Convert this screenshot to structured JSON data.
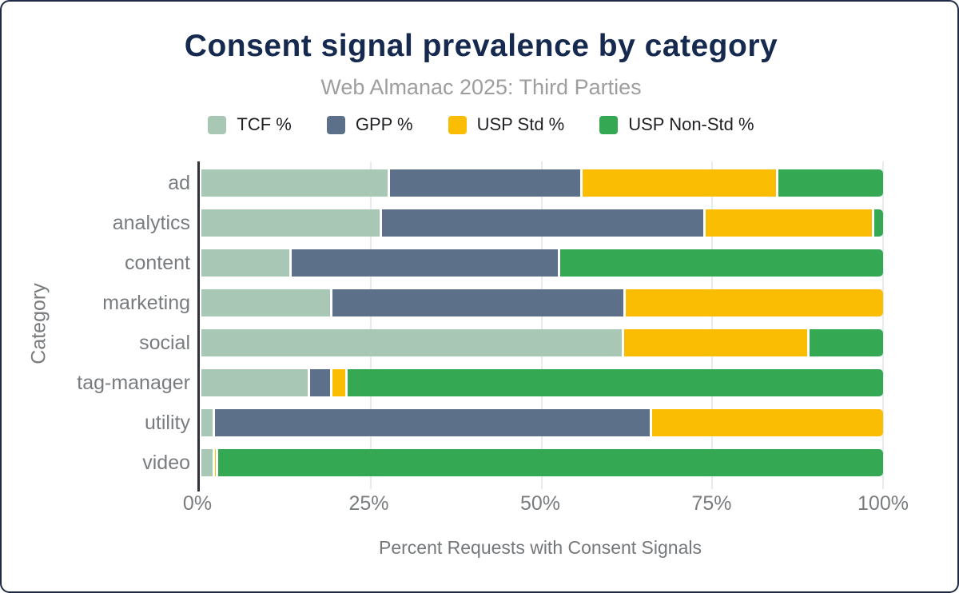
{
  "chart_data": {
    "type": "bar",
    "orientation": "horizontal-stacked",
    "title": "Consent signal prevalence by category",
    "subtitle": "Web Almanac 2025: Third Parties",
    "xlabel": "Percent Requests with Consent Signals",
    "ylabel": "Category",
    "xlim": [
      0,
      100
    ],
    "grid": "vertical",
    "legend_position": "top",
    "x_ticks": [
      {
        "value": 0,
        "label": "0%"
      },
      {
        "value": 25,
        "label": "25%"
      },
      {
        "value": 50,
        "label": "50%"
      },
      {
        "value": 75,
        "label": "75%"
      },
      {
        "value": 100,
        "label": "100%"
      }
    ],
    "categories": [
      "ad",
      "analytics",
      "content",
      "marketing",
      "social",
      "tag-manager",
      "utility",
      "video"
    ],
    "series": [
      {
        "name": "TCF %",
        "color": "#A8C7B5",
        "values": [
          27.7,
          26.5,
          13.2,
          19.2,
          62.0,
          15.9,
          2.0,
          2.0
        ]
      },
      {
        "name": "GPP %",
        "color": "#5C7189",
        "values": [
          28.2,
          47.5,
          39.4,
          43.1,
          0,
          3.3,
          64.1,
          0
        ]
      },
      {
        "name": "USP Std %",
        "color": "#FBBC04",
        "values": [
          28.7,
          24.7,
          0,
          37.7,
          27.2,
          2.3,
          33.9,
          0.5
        ]
      },
      {
        "name": "USP Non-Std %",
        "color": "#34A853",
        "values": [
          15.4,
          1.3,
          47.4,
          0,
          10.8,
          78.5,
          0,
          97.5
        ]
      }
    ]
  },
  "colors": {
    "title": "#152A4E",
    "subtitle": "#9E9E9E",
    "axis_text": "#797C7F",
    "gridline": "#E8EBEE",
    "axis_line": "#2F3337",
    "frame_border": "#1E2A45",
    "background": "#FFFFFF"
  }
}
